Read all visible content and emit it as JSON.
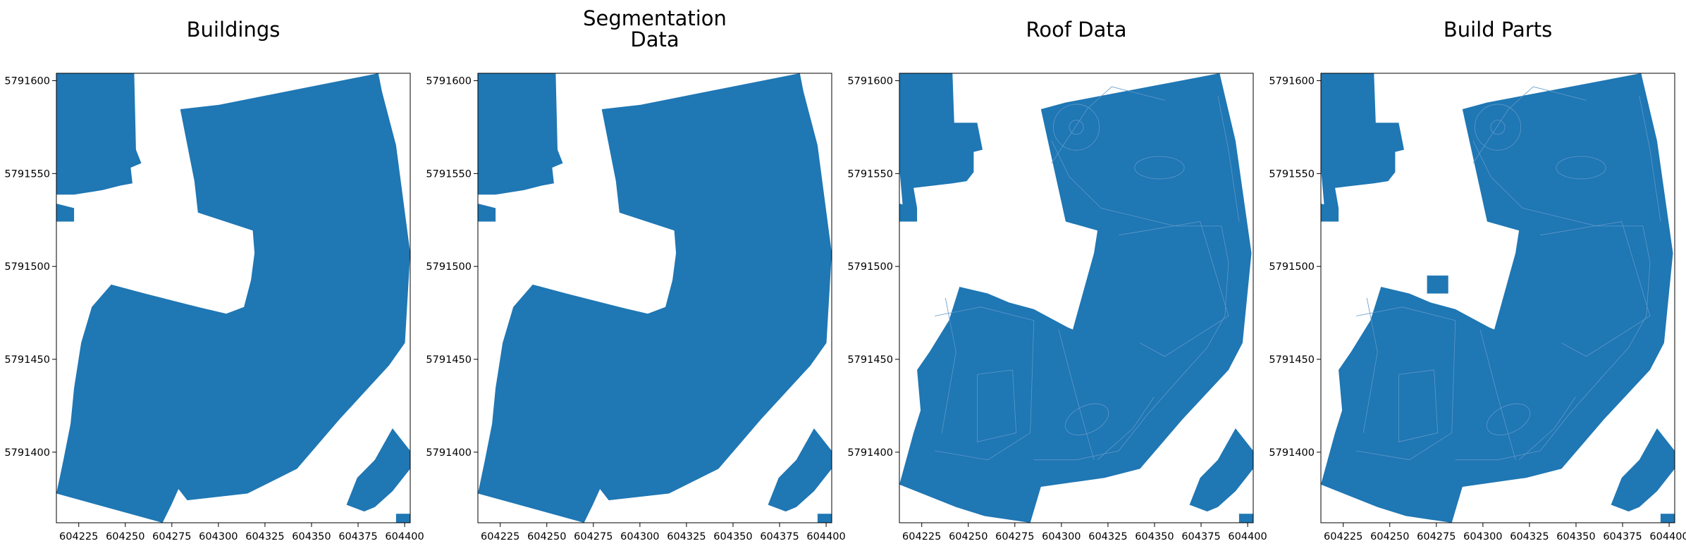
{
  "colors": {
    "fill": "#1f77b4",
    "inner_edge": "#5f98c8",
    "frame": "#000000",
    "background": "#ffffff"
  },
  "chart_data": [
    {
      "type": "map",
      "title": "Buildings",
      "xlim": [
        604213,
        604403
      ],
      "ylim": [
        5791362,
        5791604
      ],
      "xticks": [
        604225,
        604250,
        604275,
        604300,
        604325,
        604350,
        604375,
        604400
      ],
      "yticks": [
        5791400,
        5791450,
        5791500,
        5791550,
        5791600
      ],
      "xtick_labels": [
        "604225",
        "604250",
        "604275",
        "604300",
        "604325",
        "604350",
        "604375",
        "604400"
      ],
      "ytick_labels": [
        "5791400",
        "5791450",
        "5791500",
        "5791550",
        "5791600"
      ],
      "variant": "footprints"
    },
    {
      "type": "map",
      "title": "Segmentation\nData",
      "title_lines": [
        "Segmentation",
        "Data"
      ],
      "xlim": [
        604213,
        604403
      ],
      "ylim": [
        5791362,
        5791604
      ],
      "xticks": [
        604225,
        604250,
        604275,
        604300,
        604325,
        604350,
        604375,
        604400
      ],
      "yticks": [
        5791400,
        5791450,
        5791500,
        5791550,
        5791600
      ],
      "xtick_labels": [
        "604225",
        "604250",
        "604275",
        "604300",
        "604325",
        "604350",
        "604375",
        "604400"
      ],
      "ytick_labels": [
        "5791400",
        "5791450",
        "5791500",
        "5791550",
        "5791600"
      ],
      "variant": "segmentation"
    },
    {
      "type": "map",
      "title": "Roof Data",
      "xlim": [
        604213,
        604403
      ],
      "ylim": [
        5791362,
        5791604
      ],
      "xticks": [
        604225,
        604250,
        604275,
        604300,
        604325,
        604350,
        604375,
        604400
      ],
      "yticks": [
        5791400,
        5791450,
        5791500,
        5791550,
        5791600
      ],
      "xtick_labels": [
        "604225",
        "604250",
        "604275",
        "604300",
        "604325",
        "604350",
        "604375",
        "604400"
      ],
      "ytick_labels": [
        "5791400",
        "5791450",
        "5791500",
        "5791550",
        "5791600"
      ],
      "variant": "roof"
    },
    {
      "type": "map",
      "title": "Build Parts",
      "xlim": [
        604213,
        604403
      ],
      "ylim": [
        5791362,
        5791604
      ],
      "xticks": [
        604225,
        604250,
        604275,
        604300,
        604325,
        604350,
        604375,
        604400
      ],
      "yticks": [
        5791400,
        5791450,
        5791500,
        5791550,
        5791600
      ],
      "xtick_labels": [
        "604225",
        "604250",
        "604275",
        "604300",
        "604325",
        "604350",
        "604375",
        "604400"
      ],
      "ytick_labels": [
        "5791400",
        "5791450",
        "5791500",
        "5791550",
        "5791600"
      ],
      "variant": "parts"
    }
  ]
}
